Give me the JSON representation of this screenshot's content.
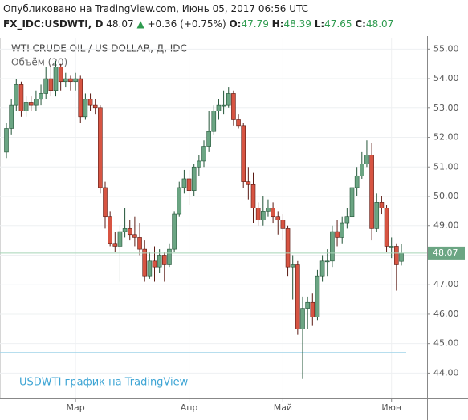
{
  "header": {
    "published": "Опубликовано на TradingView.com, Июнь 05, 2017 06:56 UTC",
    "symbol": "FX_IDC:USDWTI, D",
    "change": "+0.36 (+0.75%)",
    "ohlc_labels": [
      "O:",
      "H:",
      "L:",
      "C:"
    ]
  },
  "chart_data": {
    "type": "candlestick",
    "title": "WTI CRUDE OIL / US DOLLAR, Д, IDC",
    "subtitle": "Объём (20)",
    "watermark": "USDWTI график на TradingView",
    "categories": [
      null,
      null,
      null,
      null,
      null,
      null,
      null,
      null,
      null,
      null,
      null,
      null,
      null,
      null,
      null,
      null,
      null,
      null,
      null,
      null,
      null,
      null,
      null,
      null,
      null,
      null,
      null,
      null,
      null,
      null,
      null,
      null,
      null,
      null,
      null,
      null,
      null,
      null,
      null,
      null,
      null,
      null,
      null,
      null,
      null,
      null,
      null,
      null,
      null,
      null,
      null,
      null,
      null,
      null,
      null,
      null,
      null,
      null,
      null,
      null,
      null,
      null,
      null,
      null,
      null,
      null,
      null,
      null,
      null,
      null,
      null,
      null,
      null,
      null,
      null,
      null,
      null,
      null,
      null,
      null,
      null
    ],
    "xticks": [
      {
        "value": 14,
        "label": "Мар"
      },
      {
        "value": 37,
        "label": "Апр"
      },
      {
        "value": 56,
        "label": "Май"
      },
      {
        "value": 78,
        "label": "Июн"
      }
    ],
    "series": [
      {
        "name": "open",
        "values": [
          51.5,
          52.3,
          53.1,
          53.8,
          52.9,
          53.2,
          53.1,
          53.3,
          53.5,
          54.0,
          53.6,
          54.4,
          53.9,
          54.0,
          53.9,
          54.0,
          52.7,
          53.3,
          53.1,
          53.0,
          50.3,
          49.3,
          48.4,
          48.3,
          48.8,
          48.9,
          48.7,
          48.6,
          48.2,
          47.3,
          47.8,
          47.6,
          48.0,
          47.7,
          48.2,
          49.4,
          50.3,
          50.6,
          50.2,
          51.0,
          51.2,
          51.7,
          52.2,
          52.9,
          53.1,
          53.1,
          53.5,
          52.6,
          52.4,
          50.5,
          50.4,
          49.6,
          49.2,
          49.5,
          49.6,
          49.3,
          49.2,
          48.9,
          47.6,
          47.7,
          45.5,
          46.2,
          46.4,
          45.9,
          47.3,
          47.8,
          47.8,
          48.8,
          48.6,
          49.1,
          49.3,
          50.3,
          50.7,
          51.1,
          51.4,
          48.9,
          49.8,
          49.6,
          48.3,
          48.3,
          47.79
        ]
      },
      {
        "name": "high",
        "values": [
          52.5,
          53.3,
          54.0,
          53.9,
          53.4,
          53.4,
          53.6,
          53.8,
          54.4,
          54.5,
          54.6,
          54.5,
          54.2,
          54.1,
          54.2,
          54.1,
          53.5,
          53.5,
          53.3,
          53.1,
          50.5,
          49.5,
          48.8,
          49.0,
          49.6,
          49.2,
          49.3,
          49.1,
          48.5,
          48.1,
          48.3,
          48.2,
          48.1,
          48.4,
          49.5,
          50.5,
          50.9,
          50.9,
          51.1,
          51.4,
          51.9,
          52.9,
          53.1,
          53.3,
          53.6,
          53.7,
          53.6,
          52.8,
          52.5,
          51.0,
          50.8,
          49.8,
          50.0,
          49.9,
          49.8,
          49.5,
          49.4,
          49.0,
          48.0,
          47.8,
          46.6,
          46.6,
          46.7,
          47.5,
          48.0,
          48.2,
          49.0,
          49.2,
          49.3,
          49.6,
          50.5,
          51.0,
          51.5,
          51.9,
          51.8,
          50.1,
          50.0,
          49.7,
          48.6,
          48.4,
          48.39
        ]
      },
      {
        "name": "low",
        "values": [
          51.3,
          52.1,
          52.9,
          52.7,
          52.7,
          52.9,
          52.9,
          53.1,
          53.3,
          53.4,
          53.4,
          53.6,
          53.7,
          53.6,
          53.6,
          52.5,
          52.6,
          52.9,
          52.8,
          50.1,
          48.9,
          48.3,
          48.1,
          47.1,
          48.6,
          48.5,
          48.3,
          48.0,
          47.1,
          47.2,
          47.1,
          47.4,
          47.1,
          47.6,
          48.1,
          49.3,
          50.1,
          49.7,
          50.0,
          50.7,
          51.0,
          51.5,
          52.1,
          52.6,
          52.8,
          53.0,
          52.4,
          52.3,
          50.3,
          49.9,
          49.1,
          49.0,
          49.0,
          49.3,
          49.1,
          48.7,
          48.5,
          47.3,
          46.5,
          45.3,
          43.8,
          45.5,
          45.6,
          45.8,
          47.1,
          47.3,
          47.6,
          48.3,
          48.4,
          48.9,
          49.2,
          50.0,
          50.6,
          51.0,
          48.5,
          48.8,
          49.4,
          48.1,
          47.9,
          46.8,
          47.65
        ]
      },
      {
        "name": "close",
        "values": [
          52.3,
          53.1,
          53.8,
          52.9,
          53.2,
          53.1,
          53.3,
          53.5,
          54.0,
          53.6,
          54.4,
          53.9,
          54.0,
          53.9,
          54.0,
          52.7,
          53.3,
          53.1,
          53.0,
          50.3,
          49.3,
          48.4,
          48.3,
          48.8,
          48.9,
          48.7,
          48.6,
          48.2,
          47.3,
          47.8,
          47.6,
          48.0,
          47.7,
          48.2,
          49.4,
          50.3,
          50.6,
          50.2,
          51.0,
          51.2,
          51.7,
          52.2,
          52.9,
          53.1,
          53.1,
          53.5,
          52.6,
          52.4,
          50.5,
          50.4,
          49.6,
          49.2,
          49.5,
          49.6,
          49.3,
          49.2,
          48.9,
          47.6,
          47.7,
          45.5,
          46.2,
          46.4,
          45.9,
          47.3,
          47.8,
          47.8,
          48.8,
          48.6,
          49.1,
          49.3,
          50.3,
          50.7,
          51.1,
          51.4,
          48.9,
          49.8,
          49.6,
          48.3,
          48.3,
          47.7,
          48.07
        ]
      }
    ],
    "up_color": "#6ba583",
    "down_color": "#d75442",
    "reference_lines": [
      44.7
    ],
    "ylim": [
      43.14,
      55.39
    ],
    "yticks": [
      {
        "value": 44,
        "label": "44.00"
      },
      {
        "value": 45,
        "label": "45.00"
      },
      {
        "value": 46,
        "label": "46.00"
      },
      {
        "value": 47,
        "label": "47.00"
      },
      {
        "value": 48,
        "label": "48.00"
      },
      {
        "value": 49,
        "label": "49.00"
      },
      {
        "value": 50,
        "label": "50.00"
      },
      {
        "value": 51,
        "label": "51.00"
      },
      {
        "value": 52,
        "label": "52.00"
      },
      {
        "value": 53,
        "label": "53.00"
      },
      {
        "value": 54,
        "label": "54.00"
      },
      {
        "value": 55,
        "label": "55.00"
      }
    ],
    "grid": true
  }
}
